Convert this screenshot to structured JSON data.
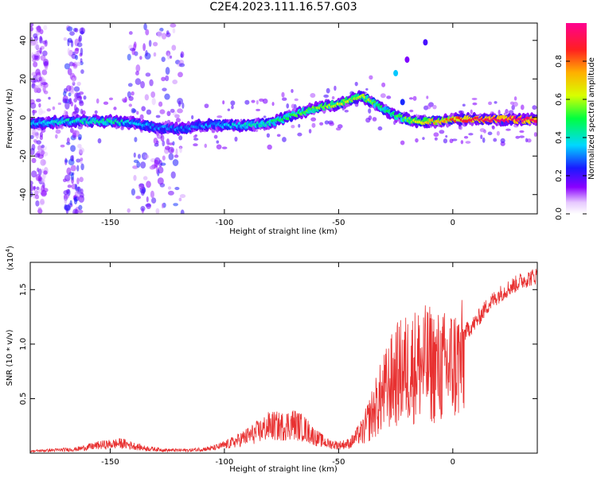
{
  "figure": {
    "title": "C2E4.2023.111.16.57.G03"
  },
  "chart_data": [
    {
      "type": "heatmap",
      "xlabel": "Height of straight line (km)",
      "ylabel": "Frequency (Hz)",
      "xlim": [
        -185,
        37
      ],
      "ylim": [
        -50,
        49
      ],
      "xticks": [
        -150,
        -100,
        -50,
        0
      ],
      "yticks": [
        -40,
        -20,
        0,
        20,
        40
      ],
      "colorbar": {
        "label": "Normalized spectral amplitude",
        "ticks": [
          0.0,
          0.2,
          0.4,
          0.6,
          0.8
        ],
        "range": [
          0,
          1
        ],
        "colormap": "rainbow (white, violet, blue, cyan, green, yellow, orange, red, magenta)"
      },
      "ridge": {
        "x": [
          -180,
          -170,
          -160,
          -150,
          -140,
          -130,
          -120,
          -110,
          -100,
          -90,
          -80,
          -70,
          -60,
          -50,
          -45,
          -40,
          -35,
          -30,
          -25,
          -20,
          -15,
          -10,
          -5,
          0,
          10,
          20,
          30,
          36
        ],
        "y": [
          -3,
          -2,
          -2,
          -2,
          -3,
          -5,
          -6,
          -4,
          -4,
          -4,
          -3,
          1,
          5,
          7,
          9,
          11,
          8,
          4,
          1,
          -1,
          -2,
          -2,
          -2,
          -1,
          -1,
          -1,
          -1,
          -1
        ],
        "amplitude": [
          0.35,
          0.4,
          0.4,
          0.45,
          0.35,
          0.3,
          0.3,
          0.3,
          0.35,
          0.4,
          0.45,
          0.5,
          0.55,
          0.6,
          0.6,
          0.6,
          0.55,
          0.45,
          0.5,
          0.55,
          0.65,
          0.7,
          0.75,
          0.8,
          0.9,
          0.95,
          0.95,
          0.9
        ]
      },
      "bands": [
        {
          "x_from": -185,
          "x_to": -178,
          "amplitude": 0.15
        },
        {
          "x_from": -170,
          "x_to": -162,
          "amplitude": 0.2
        },
        {
          "x_from": -142,
          "x_to": -118,
          "amplitude": 0.2
        }
      ],
      "spots": [
        {
          "x": -25,
          "y": 23,
          "amplitude": 0.35
        },
        {
          "x": -12,
          "y": 39,
          "amplitude": 0.2
        },
        {
          "x": -20,
          "y": 30,
          "amplitude": 0.15
        },
        {
          "x": -22,
          "y": 8,
          "amplitude": 0.25
        }
      ]
    },
    {
      "type": "line",
      "xlabel": "Height of straight line (km)",
      "ylabel": "SNR (10 * v/v)",
      "exponent_label": "(x10",
      "exponent": "4",
      "xlim": [
        -185,
        37
      ],
      "ylim": [
        0,
        1.75
      ],
      "xticks": [
        -150,
        -100,
        -50,
        0
      ],
      "yticks": [
        0.5,
        1.0,
        1.5
      ],
      "color": "#e83030",
      "envelope": {
        "x": [
          -185,
          -175,
          -165,
          -155,
          -145,
          -135,
          -125,
          -115,
          -105,
          -100,
          -95,
          -90,
          -85,
          -80,
          -75,
          -70,
          -65,
          -60,
          -55,
          -50,
          -45,
          -40,
          -35,
          -30,
          -25,
          -20,
          -15,
          -10,
          -5,
          0,
          5,
          10,
          15,
          20,
          25,
          30,
          37
        ],
        "y": [
          0.02,
          0.03,
          0.04,
          0.08,
          0.1,
          0.05,
          0.03,
          0.03,
          0.05,
          0.08,
          0.12,
          0.17,
          0.22,
          0.28,
          0.27,
          0.3,
          0.25,
          0.16,
          0.1,
          0.08,
          0.1,
          0.22,
          0.48,
          0.72,
          0.92,
          1.0,
          1.05,
          1.05,
          1.0,
          1.05,
          1.1,
          1.2,
          1.35,
          1.45,
          1.52,
          1.58,
          1.63
        ]
      }
    }
  ]
}
